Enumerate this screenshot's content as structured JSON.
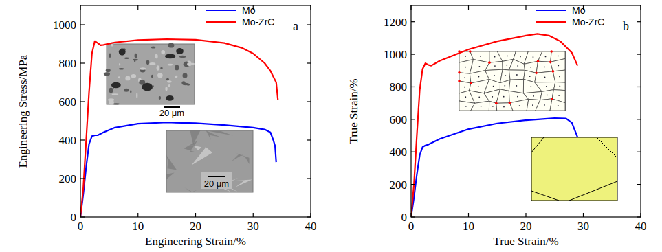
{
  "chart_data": [
    {
      "type": "line",
      "title": "a",
      "x_label": "Engineering Strain/%",
      "y_label": "Engineering Stress/MPa",
      "xlim": [
        0,
        40
      ],
      "ylim": [
        0,
        1100
      ],
      "xticks": [
        0,
        10,
        20,
        30,
        40
      ],
      "yticks": [
        0,
        200,
        400,
        600,
        800,
        1000
      ],
      "legend": "upper right",
      "series": [
        {
          "name": "Mo",
          "color": "#0000ff",
          "x": [
            0,
            0.5,
            1,
            1.5,
            2,
            2.5,
            3,
            4,
            6,
            10,
            15,
            20,
            25,
            30,
            32,
            33,
            33.5,
            33.8,
            34
          ],
          "values": [
            0,
            120,
            260,
            380,
            420,
            425,
            425,
            440,
            465,
            485,
            492,
            488,
            478,
            465,
            455,
            440,
            400,
            370,
            285
          ]
        },
        {
          "name": "Mo-ZrC",
          "color": "#ff0000",
          "x": [
            0,
            0.5,
            1,
            1.5,
            2,
            2.5,
            3,
            3.5,
            4,
            6,
            10,
            15,
            20,
            25,
            28,
            30,
            32,
            33,
            34,
            34.3
          ],
          "values": [
            0,
            150,
            400,
            650,
            850,
            915,
            905,
            893,
            895,
            908,
            920,
            925,
            922,
            905,
            880,
            850,
            800,
            760,
            700,
            610
          ]
        }
      ],
      "annotations": [
        "20 μm",
        "20 μm"
      ]
    },
    {
      "type": "line",
      "title": "b",
      "x_label": "True Strain/%",
      "y_label": "True Strain/%",
      "xlim": [
        0,
        40
      ],
      "ylim": [
        0,
        1300
      ],
      "xticks": [
        0,
        10,
        20,
        30,
        40
      ],
      "yticks": [
        0,
        200,
        400,
        600,
        800,
        1000,
        1200
      ],
      "legend": "upper right",
      "series": [
        {
          "name": "Mo",
          "color": "#0000ff",
          "x": [
            0,
            0.5,
            1,
            1.5,
            2,
            2.5,
            3,
            5,
            10,
            15,
            20,
            25,
            27,
            28,
            29
          ],
          "values": [
            0,
            120,
            260,
            380,
            430,
            440,
            445,
            480,
            540,
            575,
            595,
            607,
            605,
            580,
            490
          ]
        },
        {
          "name": "Mo-ZrC",
          "color": "#ff0000",
          "x": [
            0,
            0.5,
            1,
            1.5,
            2,
            2.5,
            3,
            3.5,
            5,
            10,
            15,
            20,
            22,
            24,
            26,
            28,
            29
          ],
          "values": [
            0,
            200,
            500,
            780,
            910,
            945,
            935,
            930,
            960,
            1030,
            1080,
            1115,
            1125,
            1115,
            1080,
            1010,
            930
          ]
        }
      ]
    }
  ]
}
